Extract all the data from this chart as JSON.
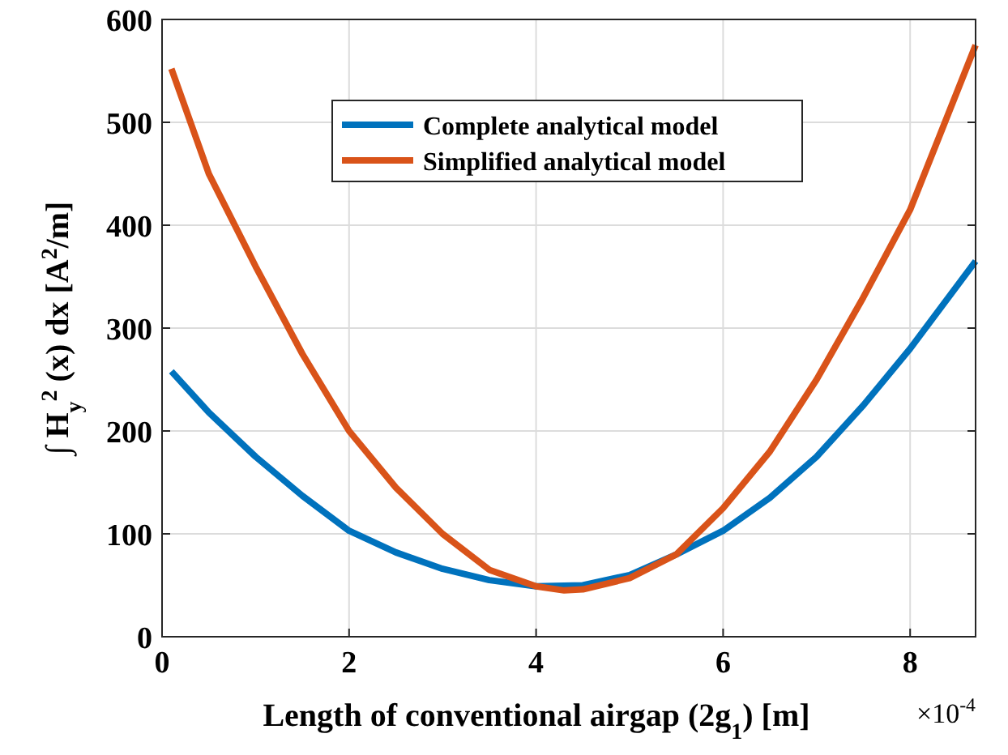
{
  "chart_data": {
    "type": "line",
    "xlabel": "Length of conventional airgap (2g$_{1}$) [m]",
    "ylabel": "∫ H$_{y}$$^{2}$ (x) dx   [A$^{2}$/m]",
    "annotations": [
      "×10$^{-4}$"
    ],
    "xlim": [
      0,
      8.7
    ],
    "xticks": [
      0,
      2,
      4,
      6,
      8
    ],
    "ylim": [
      0,
      600
    ],
    "yticks": [
      0,
      100,
      200,
      300,
      400,
      500,
      600
    ],
    "grid": true,
    "legend": "top",
    "line_style": "solid",
    "marker": "none",
    "series": [
      {
        "name": "Complete analytical model",
        "color": "#0072bd",
        "x": [
          0.1,
          0.5,
          1,
          1.5,
          2,
          2.5,
          3,
          3.5,
          4,
          4.5,
          5,
          5.5,
          6,
          6.5,
          7,
          7.5,
          8,
          8.7
        ],
        "values": [
          258,
          218,
          175,
          137,
          103,
          82,
          66,
          55,
          49,
          50,
          60,
          80,
          103,
          135,
          175,
          225,
          280,
          365
        ]
      },
      {
        "name": "Simplified analytical model",
        "color": "#d95319",
        "x": [
          0.1,
          0.5,
          1,
          1.5,
          2,
          2.5,
          3,
          3.5,
          4,
          4.3,
          4.5,
          5,
          5.5,
          6,
          6.5,
          7,
          7.5,
          8,
          8.7
        ],
        "values": [
          552,
          450,
          360,
          275,
          200,
          145,
          100,
          65,
          49,
          45,
          46,
          57,
          80,
          125,
          180,
          250,
          330,
          415,
          575
        ]
      }
    ]
  }
}
